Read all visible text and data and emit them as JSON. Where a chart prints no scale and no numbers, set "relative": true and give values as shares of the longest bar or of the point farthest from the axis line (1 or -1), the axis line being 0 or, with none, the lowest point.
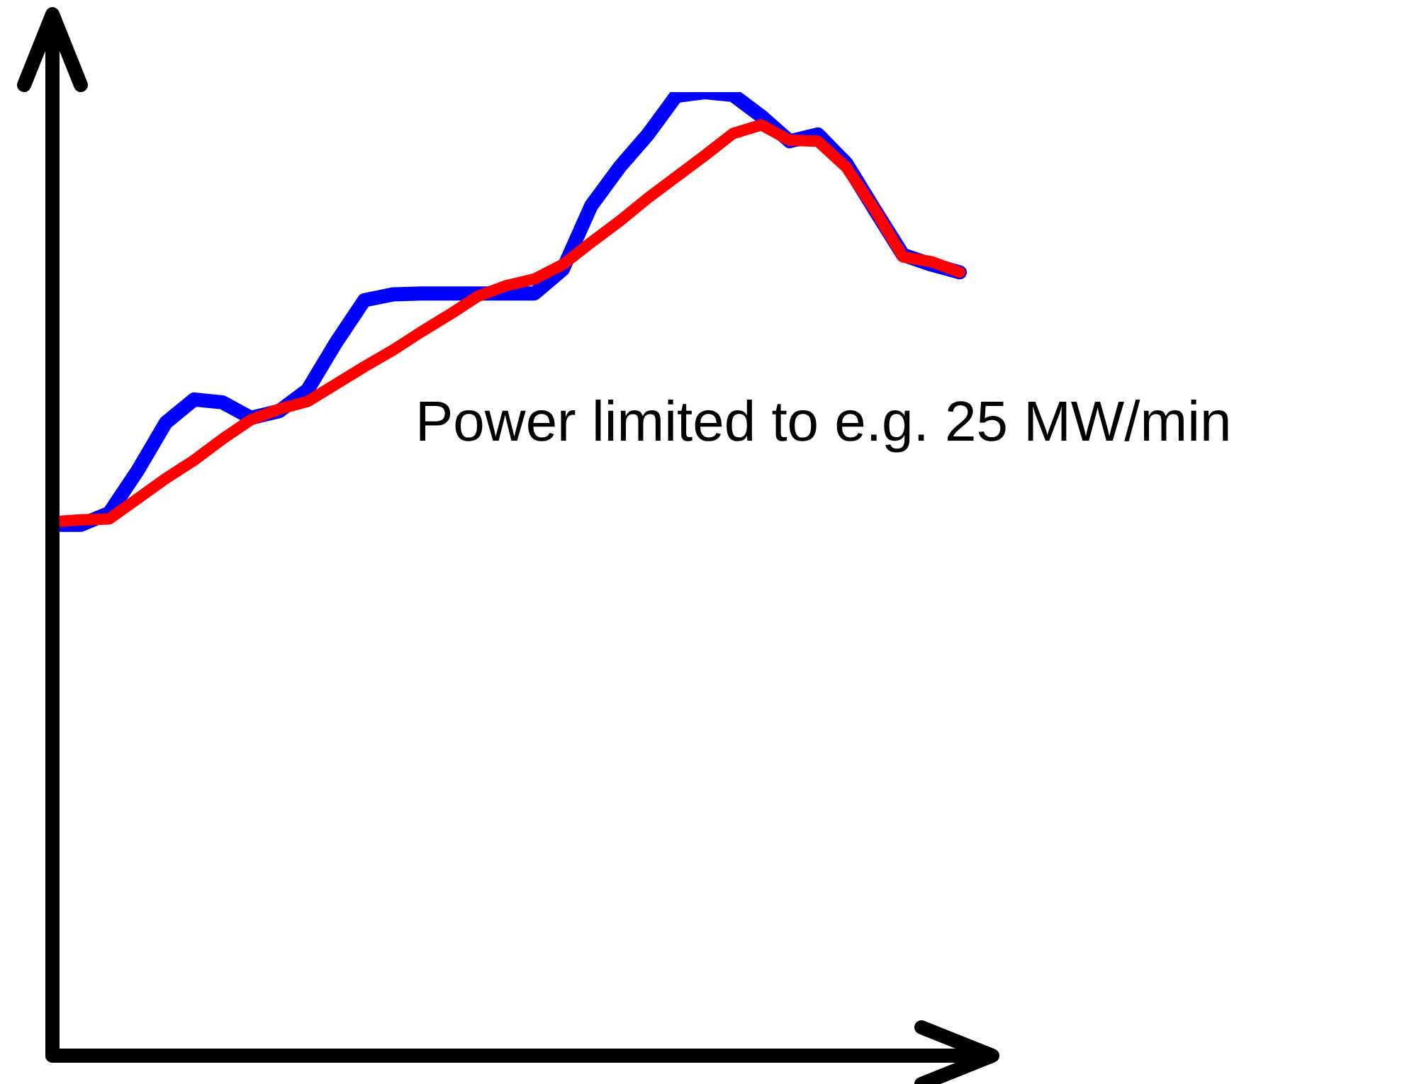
{
  "chart_data": {
    "type": "line",
    "relative": true,
    "legend": false,
    "grid": false,
    "marker": "none",
    "line_style": "solid",
    "categories": [
      null,
      null,
      null,
      null,
      null,
      null,
      null,
      null,
      null,
      null,
      null,
      null,
      null,
      null,
      null,
      null,
      null,
      null,
      null,
      null,
      null,
      null,
      null,
      null,
      null,
      null,
      null,
      null,
      null,
      null,
      null,
      null,
      null
    ],
    "series": [
      {
        "color": "#0000ff",
        "values": [
          0.551,
          0.551,
          0.563,
          0.607,
          0.657,
          0.681,
          0.678,
          0.662,
          0.669,
          0.691,
          0.74,
          0.784,
          0.79,
          0.791,
          0.791,
          0.791,
          0.791,
          0.791,
          0.816,
          0.882,
          0.922,
          0.956,
          0.996,
          1,
          0.997,
          0.975,
          0.949,
          0.956,
          0.926,
          0.878,
          0.831,
          0.821,
          0.813
        ]
      },
      {
        "color": "#ff0000",
        "values": [
          0.554,
          0.556,
          0.557,
          0.578,
          0.599,
          0.618,
          0.64,
          0.66,
          0.671,
          0.679,
          0.697,
          0.715,
          0.732,
          0.751,
          0.769,
          0.788,
          0.799,
          0.806,
          0.821,
          0.844,
          0.866,
          0.89,
          0.912,
          0.934,
          0.957,
          0.966,
          0.95,
          0.949,
          0.922,
          0.878,
          0.829,
          0.824,
          0.813
        ]
      }
    ],
    "annotations": [
      "Power limited to e.g. 25 MW/min"
    ]
  }
}
